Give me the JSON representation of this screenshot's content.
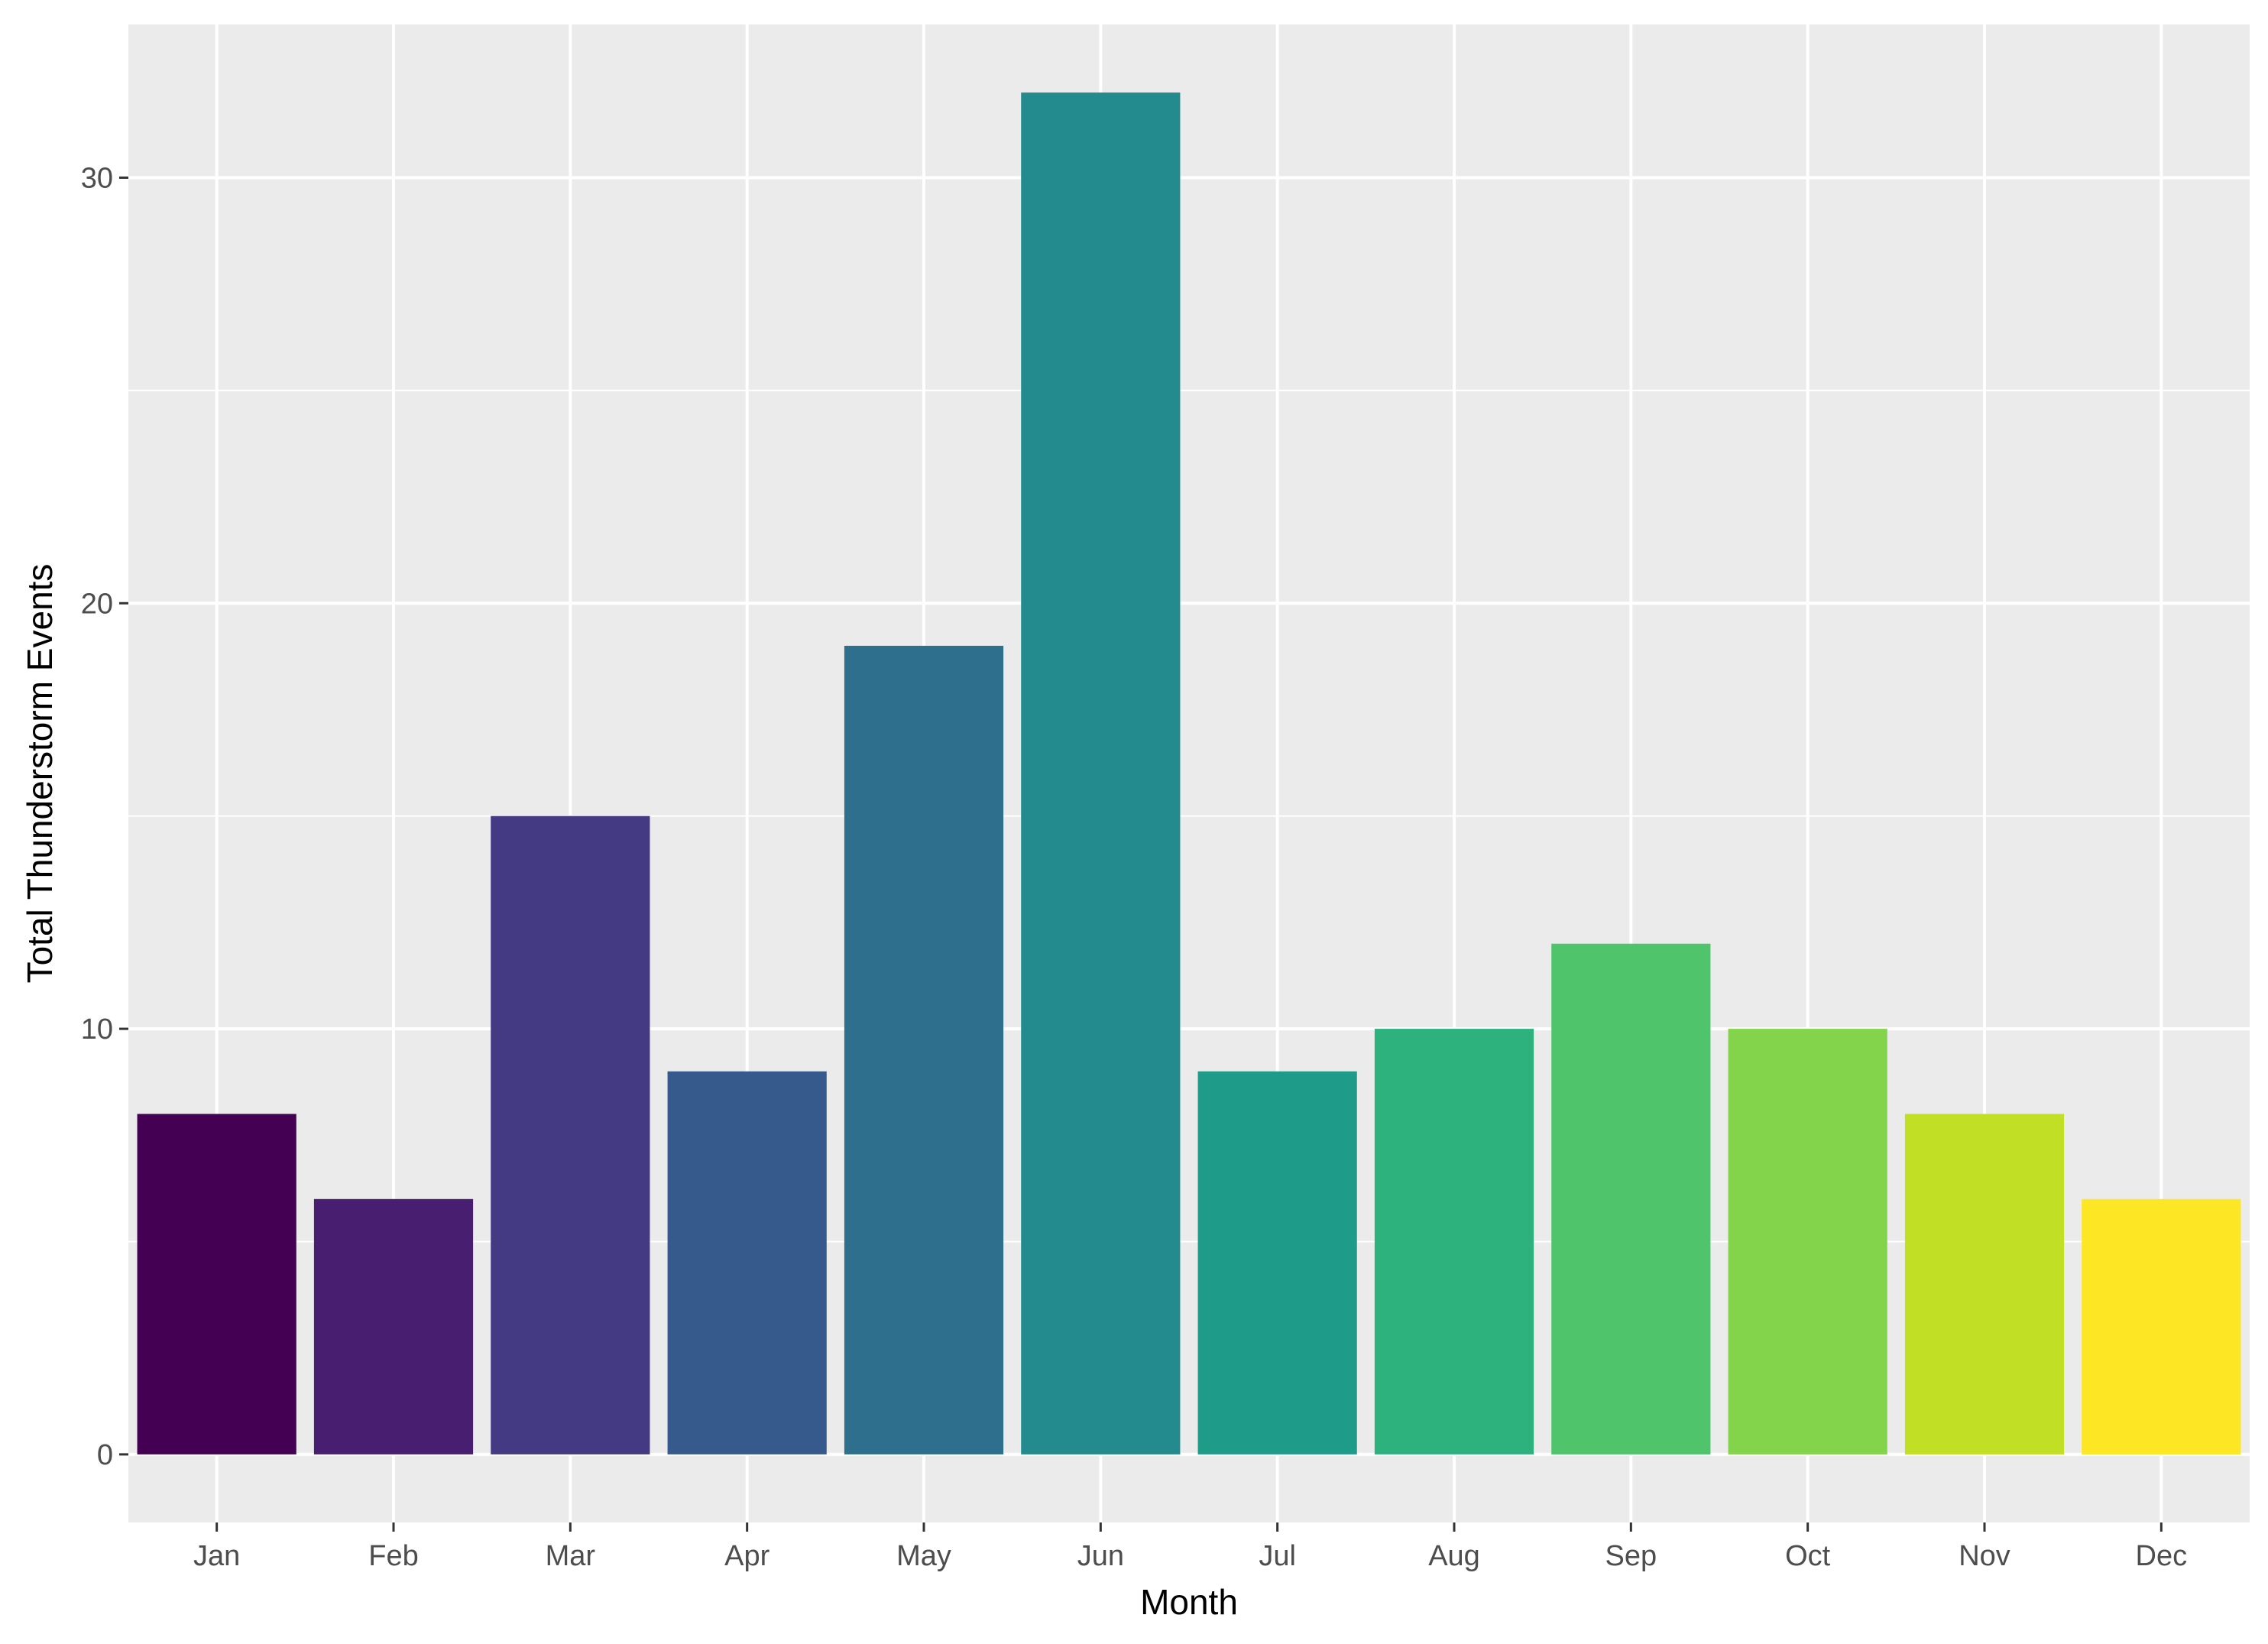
{
  "chart_data": {
    "type": "bar",
    "title": "",
    "xlabel": "Month",
    "ylabel": "Total Thunderstorm Events",
    "categories": [
      "Jan",
      "Feb",
      "Mar",
      "Apr",
      "May",
      "Jun",
      "Jul",
      "Aug",
      "Sep",
      "Oct",
      "Nov",
      "Dec"
    ],
    "values": [
      8,
      6,
      15,
      9,
      19,
      32,
      9,
      10,
      12,
      10,
      8,
      6
    ],
    "colors": [
      "#440154",
      "#481F70",
      "#443A83",
      "#375A8C",
      "#2E6F8E",
      "#238A8D",
      "#1F9C89",
      "#2DB27D",
      "#50C46A",
      "#84D44B",
      "#C1DF24",
      "#FDE725"
    ],
    "ylim": [
      -1.6,
      33.6
    ],
    "yticks": [
      0,
      10,
      20,
      30
    ],
    "ytick_labels": [
      "0",
      "10",
      "20",
      "30"
    ],
    "grid": true,
    "panel_background": "#EBEBEB",
    "grid_color": "#FFFFFF",
    "legend": "none"
  }
}
